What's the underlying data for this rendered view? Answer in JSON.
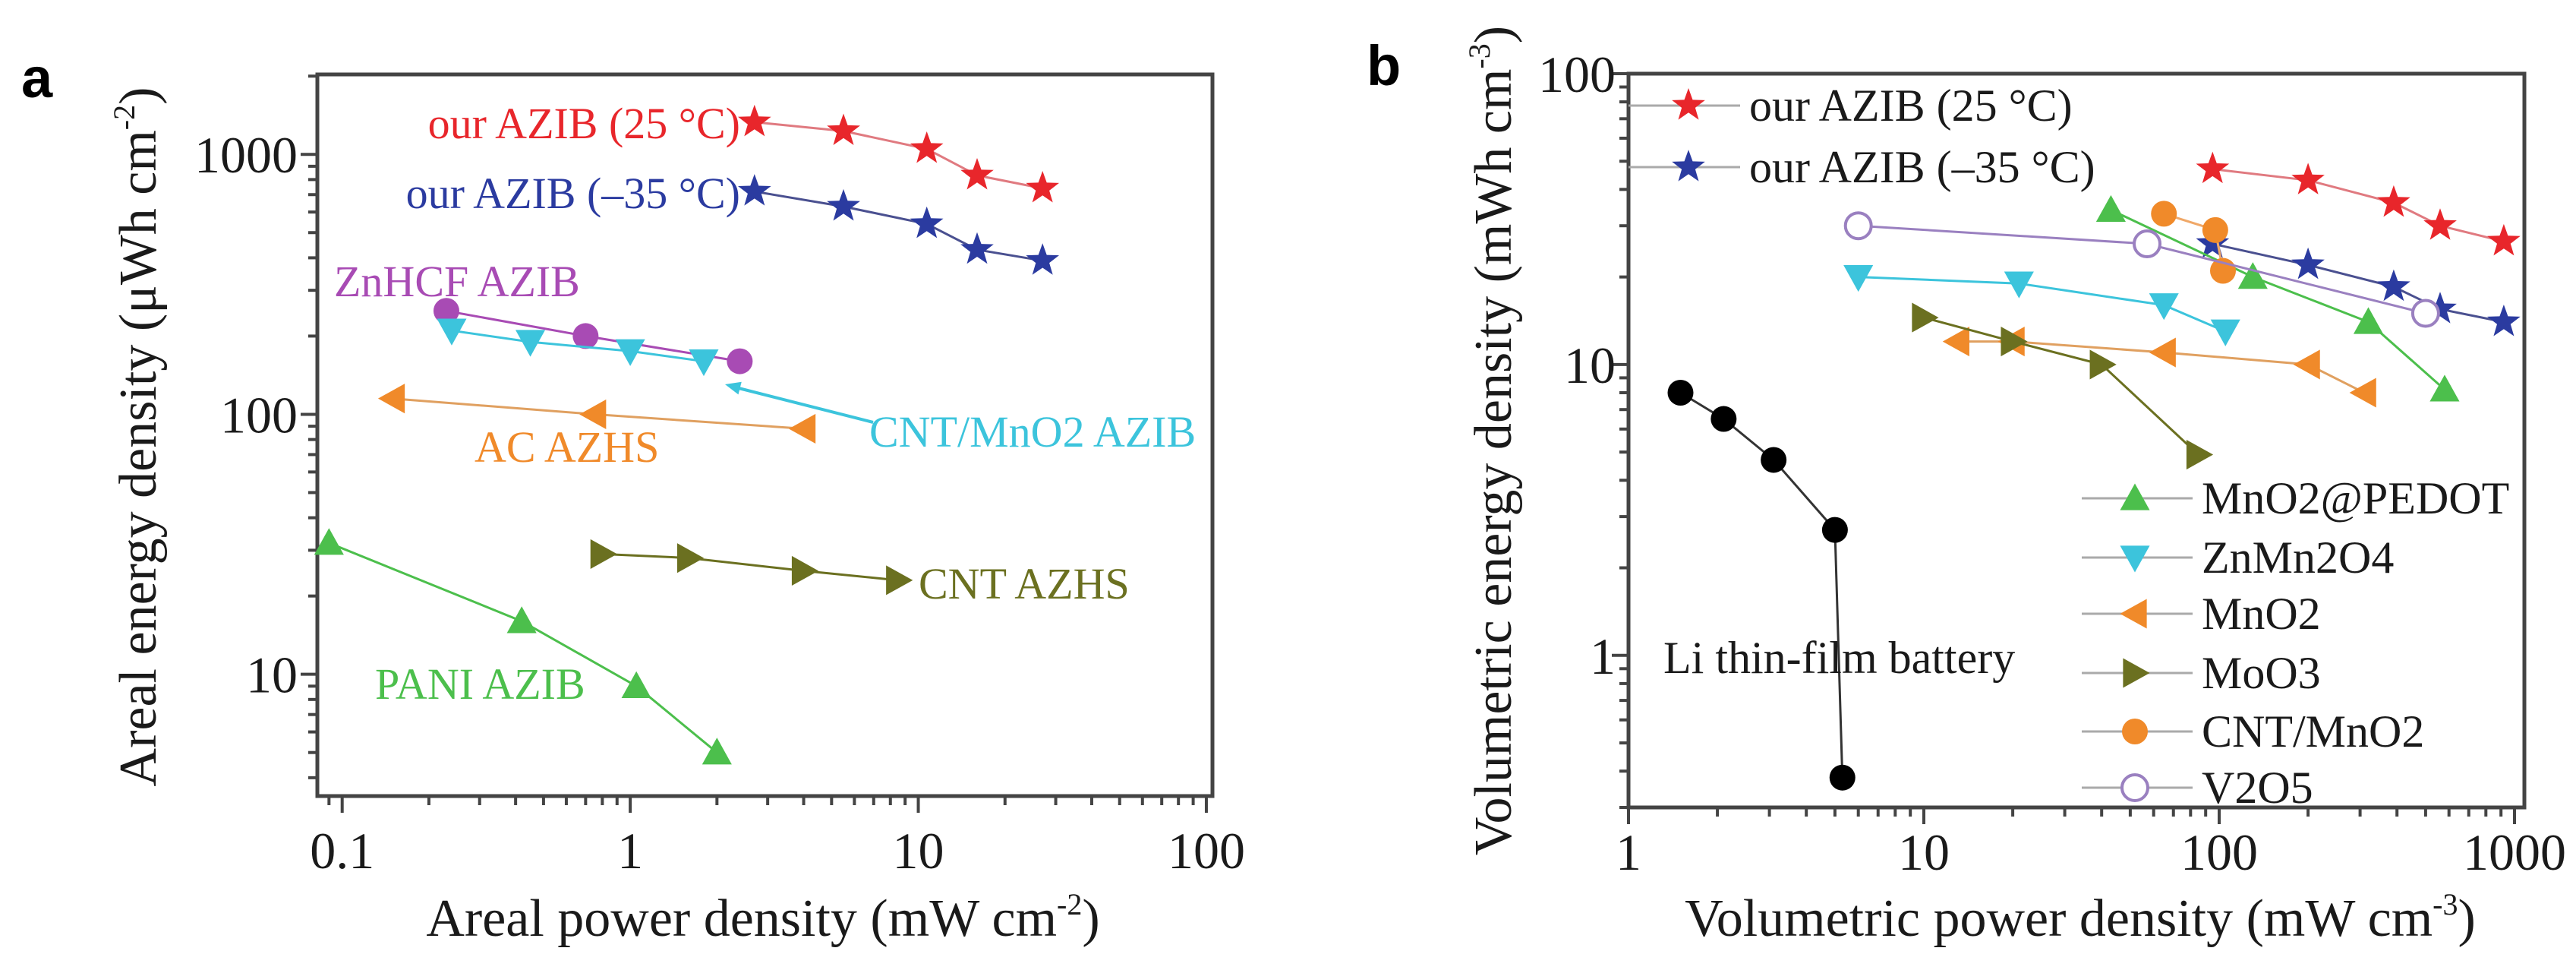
{
  "chart_data": [
    {
      "panel": "a",
      "type": "scatter",
      "xscale": "log",
      "yscale": "log",
      "xlabel": {
        "text": "Areal power density (mW cm",
        "sup": "-2",
        "end": ")"
      },
      "ylabel": {
        "text": "Areal energy density (μWh cm",
        "sup": "-2",
        "end": ")"
      },
      "xlim": [
        0.082,
        105
      ],
      "ylim": [
        3.4,
        2030
      ],
      "xticks": {
        "values": [
          0.1,
          1,
          10,
          100
        ],
        "labels": [
          "0.1",
          "1",
          "10",
          "100"
        ]
      },
      "yticks": {
        "values": [
          10,
          100,
          1000
        ],
        "labels": [
          "10",
          "100",
          "1000"
        ]
      },
      "grid": false,
      "series": [
        {
          "name": "our AZIB  (25 °C)",
          "color": "#e8262b",
          "line": "#e07a80",
          "marker": "star",
          "x": [
            2.7,
            5.5,
            10.7,
            16,
            27
          ],
          "y": [
            1330,
            1230,
            1050,
            830,
            740
          ]
        },
        {
          "name": "our AZIB  (–35 °C)",
          "color": "#2b3ba0",
          "line": "#4a5090",
          "marker": "star",
          "x": [
            2.7,
            5.5,
            10.7,
            16,
            27
          ],
          "y": [
            720,
            630,
            540,
            430,
            390
          ]
        },
        {
          "name": "ZnHCF AZIB",
          "color": "#a84bb4",
          "line": "#a84bb4",
          "marker": "circle",
          "x": [
            0.23,
            0.7,
            2.4
          ],
          "y": [
            250,
            200,
            160
          ]
        },
        {
          "name": "CNT/MnO2 AZIB",
          "color": "#3cc4dc",
          "line": "#3cc4dc",
          "marker": "tri-down",
          "x": [
            0.24,
            0.45,
            1.0,
            1.8
          ],
          "y": [
            210,
            190,
            175,
            160
          ]
        },
        {
          "name": "AC AZHS",
          "color": "#f08a2a",
          "line": "#e0a060",
          "marker": "tri-left",
          "x": [
            0.15,
            0.75,
            4.0
          ],
          "y": [
            115,
            100,
            88
          ]
        },
        {
          "name": "CNT AZHS",
          "color": "#6b7020",
          "line": "#6b7020",
          "marker": "tri-right",
          "x": [
            0.8,
            1.6,
            4.0,
            8.5
          ],
          "y": [
            29,
            28,
            25,
            23
          ]
        },
        {
          "name": "PANI AZIB",
          "color": "#4cbf4c",
          "line": "#4cbf4c",
          "marker": "tri-up",
          "x": [
            0.09,
            0.42,
            1.05,
            2.0
          ],
          "y": [
            32,
            16,
            9,
            5
          ]
        }
      ],
      "legend": "inline-annotations"
    },
    {
      "panel": "b",
      "type": "scatter",
      "xscale": "log",
      "yscale": "log",
      "xlabel": {
        "text": "Volumetric power density (mW cm",
        "sup": "-3",
        "end": ")"
      },
      "ylabel": {
        "text": "Volumetric energy density (mWh cm",
        "sup": "-3",
        "end": ")"
      },
      "xlim": [
        1,
        1080
      ],
      "ylim": [
        0.3,
        100
      ],
      "xticks": {
        "values": [
          1,
          10,
          100,
          1000
        ],
        "labels": [
          "1",
          "10",
          "100",
          "1000"
        ]
      },
      "yticks": {
        "values": [
          1,
          10,
          100
        ],
        "labels": [
          "1",
          "10",
          "100"
        ]
      },
      "grid": false,
      "series": [
        {
          "name": "our AZIB (25 °C)",
          "color": "#e8262b",
          "line": "#e07a80",
          "marker": "star",
          "x": [
            95,
            200,
            390,
            560,
            920
          ],
          "y": [
            47,
            43,
            36,
            30,
            26.5
          ]
        },
        {
          "name": "our AZIB  (–35 °C)",
          "color": "#2b3ba0",
          "line": "#4a5090",
          "marker": "star",
          "x": [
            95,
            200,
            390,
            560,
            920
          ],
          "y": [
            26,
            22,
            18.5,
            15.5,
            14
          ]
        },
        {
          "name": "MnO2@PEDOT",
          "color": "#4cbf4c",
          "line": "#4cbf4c",
          "marker": "tri-up",
          "x": [
            43,
            130,
            320,
            580
          ],
          "y": [
            34,
            20,
            14,
            8.2
          ]
        },
        {
          "name": "ZnMn2O4",
          "color": "#3cc4dc",
          "line": "#3cc4dc",
          "marker": "tri-down",
          "x": [
            6,
            21,
            65,
            105
          ],
          "y": [
            20,
            19,
            16,
            13
          ]
        },
        {
          "name": "MnO2",
          "color": "#f08a2a",
          "line": "#e0a060",
          "marker": "tri-left",
          "x": [
            13,
            20,
            65,
            200,
            310
          ],
          "y": [
            12,
            12,
            11,
            10,
            8
          ]
        },
        {
          "name": "MoO3",
          "color": "#6b7020",
          "line": "#6b7020",
          "marker": "tri-right",
          "x": [
            10,
            20,
            40,
            85
          ],
          "y": [
            14.5,
            12,
            10,
            4.9
          ]
        },
        {
          "name": "CNT/MnO2",
          "color": "#f08a2a",
          "line": "#f0a868",
          "marker": "circle",
          "x": [
            65,
            97,
            103
          ],
          "y": [
            33,
            29,
            21
          ]
        },
        {
          "name": "V2O5",
          "color": "#9a80c0",
          "line": "#9a80c0",
          "marker": "open-circle",
          "x": [
            6,
            57,
            500
          ],
          "y": [
            30,
            26,
            15
          ]
        },
        {
          "name": "Li thin-film battery",
          "color": "#000000",
          "line": "#333333",
          "marker": "circle",
          "x": [
            1.5,
            2.1,
            3.1,
            5.0,
            5.3
          ],
          "y": [
            8,
            6.5,
            4.7,
            2.7,
            0.38
          ]
        }
      ],
      "legend": "top-left and bottom-right"
    }
  ]
}
